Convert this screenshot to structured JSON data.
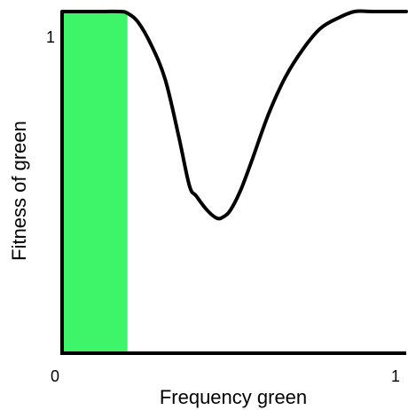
{
  "chart_data": {
    "type": "line",
    "xlabel": "Frequency green",
    "ylabel": "Fitness of green",
    "xlim": [
      0,
      1
    ],
    "ylim": [
      0,
      1
    ],
    "x_ticks": [
      "0",
      "1"
    ],
    "y_ticks": [
      "1"
    ],
    "shaded_region": {
      "x": [
        0,
        0.19
      ],
      "color": "#3ef56a"
    },
    "series": [
      {
        "color": "#000000",
        "x": [
          0.0,
          0.05,
          0.12,
          0.17,
          0.19,
          0.22,
          0.26,
          0.3,
          0.34,
          0.37,
          0.39,
          0.42,
          0.45,
          0.47,
          0.49,
          0.52,
          0.55,
          0.6,
          0.65,
          0.7,
          0.75,
          0.8,
          0.85,
          0.9,
          1.0
        ],
        "y": [
          1.0,
          1.0,
          1.0,
          1.0,
          0.995,
          0.97,
          0.9,
          0.8,
          0.63,
          0.49,
          0.46,
          0.42,
          0.395,
          0.4,
          0.42,
          0.48,
          0.56,
          0.7,
          0.81,
          0.89,
          0.95,
          0.98,
          1.0,
          1.0,
          1.0
        ]
      }
    ]
  }
}
